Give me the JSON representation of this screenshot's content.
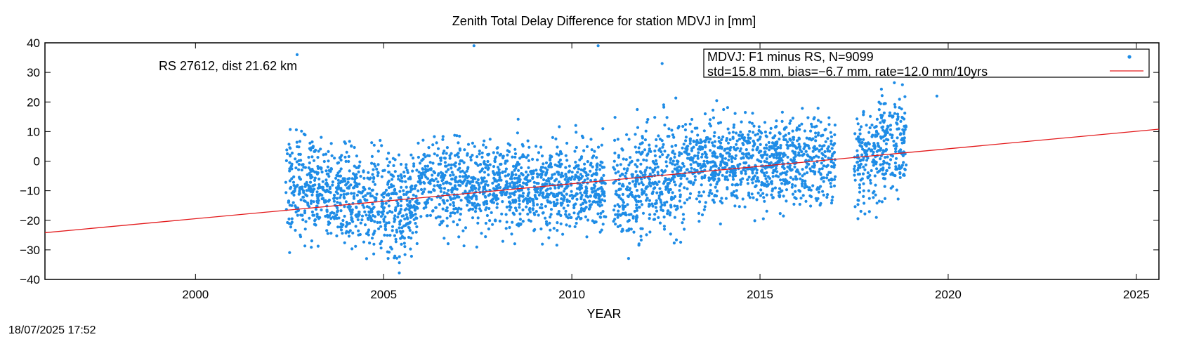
{
  "chart_data": {
    "type": "scatter",
    "title": "Zenith Total Delay Difference for station MDVJ in [mm]",
    "xlabel": "YEAR",
    "ylabel": "",
    "xlim": [
      1996,
      2025.6
    ],
    "ylim": [
      -40,
      40
    ],
    "xticks": [
      "2000",
      "2005",
      "2010",
      "2015",
      "2020",
      "2025"
    ],
    "xtick_values": [
      2000,
      2005,
      2010,
      2015,
      2020,
      2025
    ],
    "yticks": [
      "−40",
      "−30",
      "−20",
      "−10",
      "0",
      "10",
      "20",
      "30",
      "40"
    ],
    "ytick_values": [
      -40,
      -30,
      -20,
      -10,
      0,
      10,
      20,
      30,
      40
    ],
    "grid": false,
    "annotation": "RS 27612, dist 21.62 km",
    "legend": {
      "placement": "top-right",
      "entries": [
        {
          "label": "MDVJ: F1 minus RS, N=9099",
          "marker": "dot",
          "color": "#1e8ce6"
        },
        {
          "label": "std=15.8 mm, bias=−6.7 mm, rate=12.0 mm/10yrs",
          "marker": "line",
          "color": "#e31a1c"
        }
      ]
    },
    "series": [
      {
        "name": "MDVJ: F1 minus RS, N=9099",
        "kind": "points",
        "color": "#1e8ce6",
        "clusters": [
          {
            "x_range": [
              2002.4,
              2005.9
            ],
            "center_start": -8,
            "center_end": -16,
            "spread": 12
          },
          {
            "x_range": [
              2005.9,
              2010.9
            ],
            "center_start": -8,
            "center_end": -9,
            "spread": 10
          },
          {
            "x_range": [
              2011.1,
              2013.0
            ],
            "center_start": -10,
            "center_end": -5,
            "spread": 13
          },
          {
            "x_range": [
              2013.0,
              2017.0
            ],
            "center_start": 0,
            "center_end": 0,
            "spread": 11
          },
          {
            "x_range": [
              2017.5,
              2018.9
            ],
            "center_start": 0,
            "center_end": 8,
            "spread": 13
          }
        ],
        "outliers": [
          {
            "x": 2002.7,
            "y": 36
          },
          {
            "x": 2007.4,
            "y": 39
          },
          {
            "x": 2010.7,
            "y": 39
          },
          {
            "x": 2012.4,
            "y": 33
          },
          {
            "x": 2019.7,
            "y": 22
          }
        ]
      },
      {
        "name": "std=15.8 mm, bias=−6.7 mm, rate=12.0 mm/10yrs",
        "kind": "line",
        "color": "#e31a1c",
        "x": [
          1996,
          2025.6
        ],
        "y": [
          -24.2,
          10.8
        ]
      }
    ]
  },
  "footer": {
    "timestamp": "18/07/2025 17:52"
  }
}
